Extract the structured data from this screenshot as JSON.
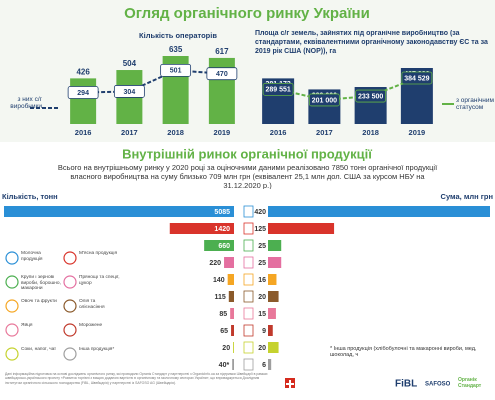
{
  "title": "Огляд органічного ринку України",
  "section_title": "Внутрішній ринок органічної продукції",
  "summary": "Всього на внутрішньому ринку у 2020 році за оціночними даними реалізовано 7850 тонн органічної продукції власного виробництва на суму близько 709 млн грн (еквівалент 25,1 млн дол. США за курсом НБУ на 31.12.2020 р.)",
  "footnote": "* Інша продукція (хлібобулочні та макаронні вироби, мед, шоколад, ч",
  "footer_text": "Дані інформаційна підготовка на основі досліджень органічного ринку, які проводили Органік Стандарт у партнерстві з OrganicInfo.ua за підтримки Швейцарії в рамках швейцарсько-українського проекту «Розвиток торгівлі з вищою доданою вартістю в органічному та молочному секторах України», що впроваджується Дослідним інститутом органічного сільського господарства (FiBL, Швейцарія) у партнерстві із SAFOSO AG (Швейцарія).",
  "logos": [
    "FiBL",
    "SAFOSO",
    "Органік Стандарт"
  ],
  "chart_data": [
    {
      "type": "bar_line",
      "title": "Кількість операторів",
      "categories": [
        "2016",
        "2017",
        "2018",
        "2019"
      ],
      "series": [
        {
          "color": "#62b246",
          "values": [
            426,
            504,
            635,
            617
          ]
        },
        {
          "name": "з них с/г виробники",
          "color": "#1f3e6e",
          "values": [
            294,
            304,
            501,
            470
          ]
        }
      ]
    },
    {
      "type": "bar_line",
      "title": "Площа с/г земель, зайнятих під органічне виробництво (за стандартами, еквівалентними органічному законодавству ЄС та за 2019 рік США (NOP)), га",
      "categories": [
        "2016",
        "2017",
        "2018",
        "2019"
      ],
      "series": [
        {
          "color": "#1f3e6e",
          "values": [
            381173,
            289000,
            309100,
            467980
          ],
          "value_labels": [
            "381 173",
            "289 000",
            "309 100",
            "467 980"
          ]
        },
        {
          "name": "з органічним статусом",
          "color": "#62b246",
          "values": [
            289551,
            201000,
            233500,
            384529
          ],
          "value_labels": [
            "289 551",
            "201 000",
            "233 500",
            "384 529"
          ]
        }
      ]
    },
    {
      "type": "hbar",
      "title": "Кількість, тонн",
      "categories": [
        "Молочна продукція",
        "М'ясна продукція",
        "Крупи і зернові вироби, борошно, макарони",
        "Прянощі та спеції, цукор",
        "Овочі та фрукти",
        "Олія та олієнасіння",
        "Яйця",
        "Морожене",
        "Соки, напої, чаї",
        "Інша продукція*"
      ],
      "colors": [
        "#2a8fd6",
        "#d9342b",
        "#4caf50",
        "#e46fa0",
        "#f5a623",
        "#8b5a2b",
        "#e8789a",
        "#c0392b",
        "#c5d22e",
        "#9e9e9e"
      ],
      "values": [
        5085,
        1420,
        660,
        220,
        140,
        115,
        85,
        65,
        20,
        40
      ],
      "value_labels": [
        "5085",
        "1420",
        "660",
        "220",
        "140",
        "115",
        "85",
        "65",
        "20",
        "40*"
      ]
    },
    {
      "type": "hbar",
      "title": "Сума, млн грн",
      "colors": [
        "#2a8fd6",
        "#d9342b",
        "#4caf50",
        "#e46fa0",
        "#f5a623",
        "#8b5a2b",
        "#e8789a",
        "#c0392b",
        "#c5d22e",
        "#9e9e9e"
      ],
      "values": [
        420,
        125,
        25,
        25,
        16,
        20,
        15,
        9,
        20,
        6
      ]
    }
  ]
}
